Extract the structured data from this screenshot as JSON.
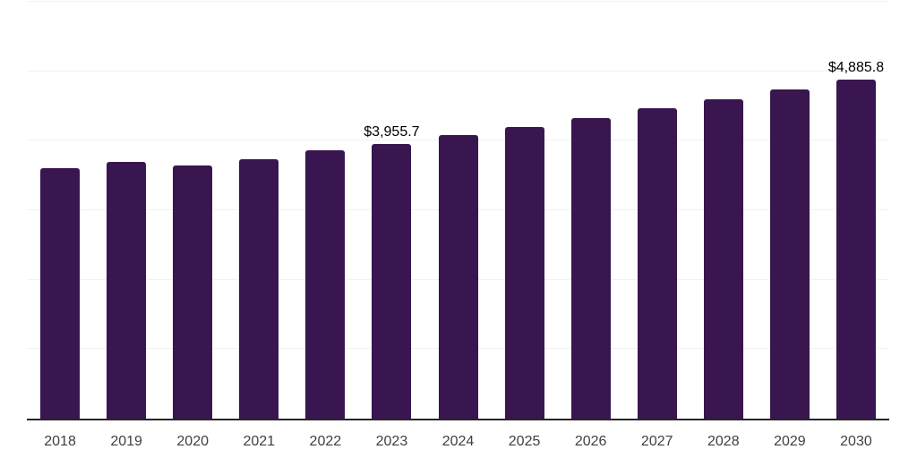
{
  "chart_data": {
    "type": "bar",
    "title": "",
    "xlabel": "",
    "ylabel": "",
    "x_axis_type": "category",
    "categories": [
      "2018",
      "2019",
      "2020",
      "2021",
      "2022",
      "2023",
      "2024",
      "2025",
      "2026",
      "2027",
      "2028",
      "2029",
      "2030"
    ],
    "values": [
      3600,
      3695,
      3645,
      3735,
      3858,
      3955.7,
      4076,
      4200,
      4330,
      4462,
      4599,
      4740,
      4885.8
    ],
    "data_labels": [
      "",
      "",
      "",
      "",
      "",
      "$3,955.7",
      "",
      "",
      "",
      "",
      "",
      "",
      "$4,885.8"
    ],
    "ylim": [
      0,
      6000
    ],
    "gridline_values": [
      1000,
      2000,
      3000,
      4000,
      5000,
      6000
    ],
    "grid": "horizontal",
    "legend": "none",
    "colors": {
      "bar": "#39164F",
      "gridline": "#F2F2F2",
      "axis_line": "#262626",
      "tick_label": "#404040",
      "data_label": "#000000",
      "background": "#FFFFFF"
    }
  }
}
